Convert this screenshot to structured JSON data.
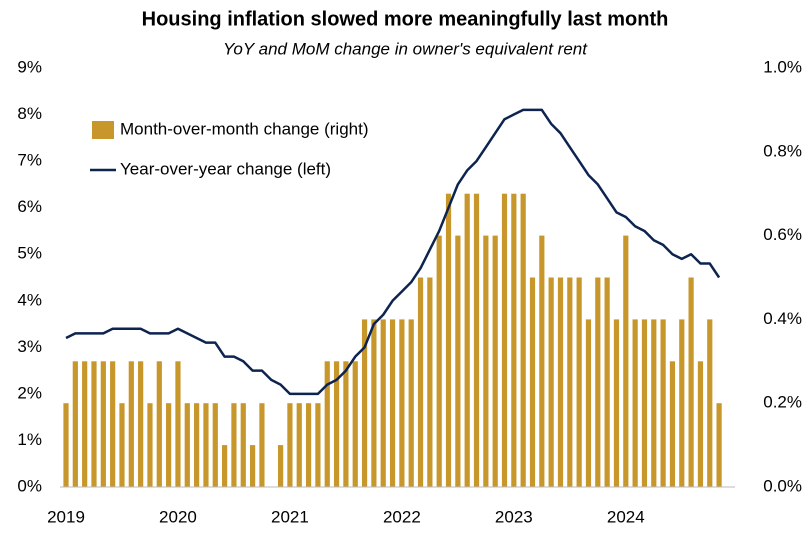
{
  "chart_data": {
    "type": "bar_line",
    "title": "Housing inflation slowed more meaningfully last month",
    "subtitle": "YoY and MoM change in owner's equivalent rent",
    "categories": [
      "2019",
      null,
      null,
      null,
      null,
      null,
      null,
      null,
      null,
      null,
      null,
      null,
      "2020",
      null,
      null,
      null,
      null,
      null,
      null,
      null,
      null,
      null,
      null,
      null,
      "2021",
      null,
      null,
      null,
      null,
      null,
      null,
      null,
      null,
      null,
      null,
      null,
      "2022",
      null,
      null,
      null,
      null,
      null,
      null,
      null,
      null,
      null,
      null,
      null,
      "2023",
      null,
      null,
      null,
      null,
      null,
      null,
      null,
      null,
      null,
      null,
      null,
      "2024",
      null,
      null,
      null,
      null,
      null,
      null,
      null,
      null,
      null,
      null
    ],
    "series": [
      {
        "name": "Month-over-month change (right)",
        "color": "#c8972b",
        "axis": "y2",
        "kind": "bar",
        "values": [
          0.2,
          0.3,
          0.3,
          0.3,
          0.3,
          0.3,
          0.2,
          0.3,
          0.3,
          0.2,
          0.3,
          0.2,
          0.3,
          0.2,
          0.2,
          0.2,
          0.2,
          0.1,
          0.2,
          0.2,
          0.1,
          0.2,
          0.0,
          0.1,
          0.2,
          0.2,
          0.2,
          0.2,
          0.3,
          0.3,
          0.3,
          0.3,
          0.4,
          0.4,
          0.4,
          0.4,
          0.4,
          0.4,
          0.5,
          0.5,
          0.6,
          0.7,
          0.6,
          0.7,
          0.7,
          0.6,
          0.6,
          0.7,
          0.7,
          0.7,
          0.5,
          0.6,
          0.5,
          0.5,
          0.5,
          0.5,
          0.4,
          0.5,
          0.5,
          0.4,
          0.6,
          0.4,
          0.4,
          0.4,
          0.4,
          0.3,
          0.4,
          0.5,
          0.3,
          0.4,
          0.2
        ]
      },
      {
        "name": "Year-over-year change (left)",
        "color": "#0d2350",
        "axis": "y",
        "kind": "line",
        "values": [
          3.2,
          3.3,
          3.3,
          3.3,
          3.3,
          3.4,
          3.4,
          3.4,
          3.4,
          3.3,
          3.3,
          3.3,
          3.4,
          3.3,
          3.2,
          3.1,
          3.1,
          2.8,
          2.8,
          2.7,
          2.5,
          2.5,
          2.3,
          2.2,
          2.0,
          2.0,
          2.0,
          2.0,
          2.2,
          2.3,
          2.5,
          2.8,
          3.0,
          3.5,
          3.7,
          4.0,
          4.2,
          4.4,
          4.7,
          5.1,
          5.5,
          6.0,
          6.5,
          6.8,
          7.0,
          7.3,
          7.6,
          7.9,
          8.0,
          8.1,
          8.1,
          8.1,
          7.8,
          7.6,
          7.3,
          7.0,
          6.7,
          6.5,
          6.2,
          5.9,
          5.8,
          5.6,
          5.5,
          5.3,
          5.2,
          5.0,
          4.9,
          5.0,
          4.8,
          4.8,
          4.5
        ]
      }
    ],
    "ylim": [
      0,
      9
    ],
    "yticks": [
      {
        "value": 0,
        "label": "0%"
      },
      {
        "value": 1,
        "label": "1%"
      },
      {
        "value": 2,
        "label": "2%"
      },
      {
        "value": 3,
        "label": "3%"
      },
      {
        "value": 4,
        "label": "4%"
      },
      {
        "value": 5,
        "label": "5%"
      },
      {
        "value": 6,
        "label": "6%"
      },
      {
        "value": 7,
        "label": "7%"
      },
      {
        "value": 8,
        "label": "8%"
      },
      {
        "value": 9,
        "label": "9%"
      }
    ],
    "y2lim": [
      0,
      1
    ],
    "y2ticks": [
      {
        "value": 0,
        "label": "0.0%"
      },
      {
        "value": 0.2,
        "label": "0.2%"
      },
      {
        "value": 0.4,
        "label": "0.4%"
      },
      {
        "value": 0.6,
        "label": "0.6%"
      },
      {
        "value": 0.8,
        "label": "0.8%"
      },
      {
        "value": 1,
        "label": "1.0%"
      }
    ],
    "legend": "upper left"
  }
}
